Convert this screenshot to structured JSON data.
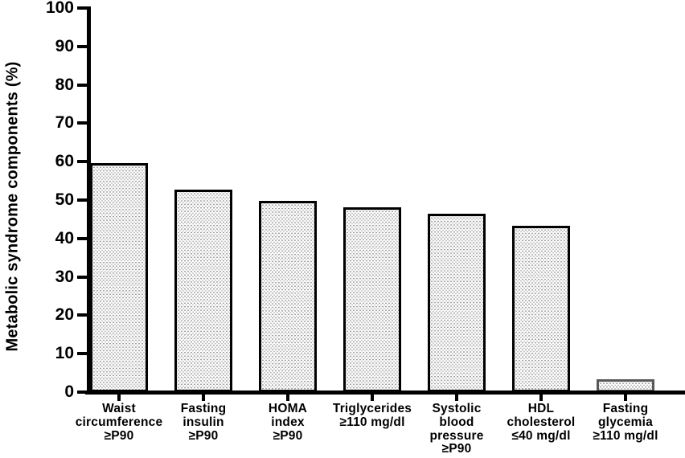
{
  "chart_data": {
    "type": "bar",
    "title": "",
    "xlabel": "",
    "ylabel": "Metabolic syndrome components (%)",
    "ylim": [
      0,
      100
    ],
    "yticks": [
      0,
      10,
      20,
      30,
      40,
      50,
      60,
      70,
      80,
      90,
      100
    ],
    "grid": false,
    "legend": null,
    "categories": [
      "Waist circumference ≥P90",
      "Fasting insulin ≥P90",
      "HOMA index ≥P90",
      "Triglycerides ≥110 mg/dl",
      "Systolic blood pressure ≥P90",
      "HDL cholesterol ≤40 mg/dl",
      "Fasting glycemia ≥110 mg/dl"
    ],
    "category_lines": [
      [
        "Waist",
        "circumference",
        "≥P90"
      ],
      [
        "Fasting",
        "insulin",
        "≥P90"
      ],
      [
        "HOMA",
        "index",
        "≥P90"
      ],
      [
        "Triglycerides",
        "≥110 mg/dl"
      ],
      [
        "Systolic",
        "blood",
        "pressure",
        "≥P90"
      ],
      [
        "HDL",
        "cholesterol",
        "≤40 mg/dl"
      ],
      [
        "Fasting",
        "glycemia",
        "≥110 mg/dl"
      ]
    ],
    "values": [
      59.6,
      52.7,
      49.8,
      48.2,
      46.5,
      43.4,
      3.4
    ],
    "bar_style": {
      "fill": "light-dotted-stipple",
      "dot_color": "#8a8a8a",
      "fill_background": "#fcfcfc",
      "border_colors": [
        "#000000",
        "#000000",
        "#000000",
        "#000000",
        "#000000",
        "#000000",
        "#595959"
      ]
    },
    "axis_color": "#000000",
    "text_color": "#000000"
  }
}
